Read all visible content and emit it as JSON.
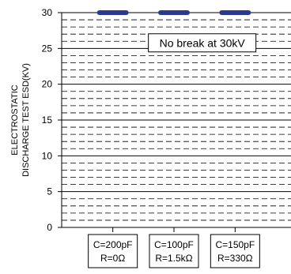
{
  "chart_data": {
    "type": "bar",
    "title": "",
    "xlabel": "",
    "ylabel": [
      "ELECTROSTATIC",
      "DISCHARGE TEST ESD(KV)"
    ],
    "ylim": [
      0,
      30
    ],
    "yticks": [
      "0",
      "5",
      "10",
      "15",
      "20",
      "25",
      "30"
    ],
    "grid": {
      "major_step": 5,
      "minor_step": 1,
      "minor_style": "dashed"
    },
    "annotation": "No break at 30kV",
    "categories": [
      {
        "line1": "C=200pF",
        "line2": "R=0Ω"
      },
      {
        "line1": "C=100pF",
        "line2": "R=1.5kΩ"
      },
      {
        "line1": "C=150pF",
        "line2": "R=330Ω"
      }
    ],
    "values": [
      30,
      30,
      30
    ],
    "marker_color": "#2b3a8c"
  }
}
